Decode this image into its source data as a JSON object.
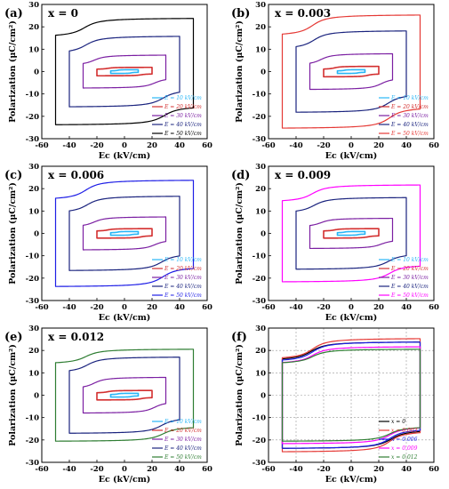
{
  "chart_data": [
    {
      "type": "line",
      "panel_label": "(a)",
      "title": "x = 0",
      "xlabel": "Ec (kV/cm)",
      "ylabel": "Polarization (μC/cm²)",
      "xlim": [
        -60,
        60
      ],
      "ylim": [
        -30,
        30
      ],
      "xticks": [
        -60,
        -40,
        -20,
        0,
        20,
        40,
        60
      ],
      "yticks": [
        -30,
        -20,
        -10,
        0,
        10,
        20,
        30
      ],
      "grid": false,
      "legend": "bottom-right",
      "series": [
        {
          "name": "E = 10 kV/cm",
          "color": "#29b6f6",
          "emax": 10,
          "pmax": 0.8,
          "pr": 0.5,
          "ec": 5,
          "pbr": 0.3
        },
        {
          "name": "E = 20 kV/cm",
          "color": "#d32f2f",
          "emax": 20,
          "pmax": 1.8,
          "pr": 1.2,
          "ec": 12,
          "pbr": 1.0
        },
        {
          "name": "E = 30 kV/cm",
          "color": "#7b1fa2",
          "emax": 30,
          "pmax": 6.5,
          "pr": 2.5,
          "ec": 22,
          "pbr": 2.8
        },
        {
          "name": "E = 40 kV/cm",
          "color": "#1a237e",
          "emax": 40,
          "pmax": 14.5,
          "pr": 8.5,
          "ec": 28,
          "pbr": 8.0
        },
        {
          "name": "E = 50 kV/cm",
          "color": "#000000",
          "emax": 50,
          "pmax": 23,
          "pr": 16.5,
          "ec": 29,
          "pbr": 15.5
        }
      ]
    },
    {
      "type": "line",
      "panel_label": "(b)",
      "title": "x = 0.003",
      "xlabel": "Ec (kV/cm)",
      "ylabel": "Polarization (μC/cm²)",
      "xlim": [
        -60,
        60
      ],
      "ylim": [
        -30,
        30
      ],
      "xticks": [
        -60,
        -40,
        -20,
        0,
        20,
        40,
        60
      ],
      "yticks": [
        -30,
        -20,
        -10,
        0,
        10,
        20,
        30
      ],
      "grid": false,
      "legend": "bottom-right",
      "series": [
        {
          "name": "E = 10 kV/cm",
          "color": "#29b6f6",
          "emax": 10,
          "pmax": 0.8,
          "pr": 0.5,
          "ec": 5,
          "pbr": 0.3
        },
        {
          "name": "E = 20 kV/cm",
          "color": "#d32f2f",
          "emax": 20,
          "pmax": 2.2,
          "pr": 1.2,
          "ec": 12,
          "pbr": 1.0
        },
        {
          "name": "E = 30 kV/cm",
          "color": "#7b1fa2",
          "emax": 30,
          "pmax": 7,
          "pr": 3,
          "ec": 22,
          "pbr": 2.8
        },
        {
          "name": "E = 40 kV/cm",
          "color": "#1a237e",
          "emax": 40,
          "pmax": 17,
          "pr": 11,
          "ec": 27,
          "pbr": 10
        },
        {
          "name": "E = 50 kV/cm",
          "color": "#e53935",
          "emax": 50,
          "pmax": 24.5,
          "pr": 17,
          "ec": 28,
          "pbr": 16
        }
      ]
    },
    {
      "type": "line",
      "panel_label": "(c)",
      "title": "x = 0.006",
      "xlabel": "Ec (kV/cm)",
      "ylabel": "Polarization (μC/cm²)",
      "xlim": [
        -60,
        60
      ],
      "ylim": [
        -30,
        30
      ],
      "xticks": [
        -60,
        -40,
        -20,
        0,
        20,
        40,
        60
      ],
      "yticks": [
        -30,
        -20,
        -10,
        0,
        10,
        20,
        30
      ],
      "grid": false,
      "legend": "bottom-right",
      "series": [
        {
          "name": "E = 10 kV/cm",
          "color": "#29b6f6",
          "emax": 10,
          "pmax": 0.8,
          "pr": 0.5,
          "ec": 5,
          "pbr": 0.3
        },
        {
          "name": "E = 20 kV/cm",
          "color": "#d32f2f",
          "emax": 20,
          "pmax": 2.0,
          "pr": 1.2,
          "ec": 12,
          "pbr": 1.0
        },
        {
          "name": "E = 30 kV/cm",
          "color": "#7b1fa2",
          "emax": 30,
          "pmax": 6.5,
          "pr": 2.8,
          "ec": 22,
          "pbr": 2.8
        },
        {
          "name": "E = 40 kV/cm",
          "color": "#1a237e",
          "emax": 40,
          "pmax": 15.5,
          "pr": 10,
          "ec": 27,
          "pbr": 9
        },
        {
          "name": "E = 50 kV/cm",
          "color": "#1e1ee6",
          "emax": 50,
          "pmax": 23,
          "pr": 16,
          "ec": 28,
          "pbr": 15
        }
      ]
    },
    {
      "type": "line",
      "panel_label": "(d)",
      "title": "x = 0.009",
      "xlabel": "Ec (kV/cm)",
      "ylabel": "Polarization (μC/cm²)",
      "xlim": [
        -60,
        60
      ],
      "ylim": [
        -30,
        30
      ],
      "xticks": [
        -60,
        -40,
        -20,
        0,
        20,
        40,
        60
      ],
      "yticks": [
        -30,
        -20,
        -10,
        0,
        10,
        20,
        30
      ],
      "grid": false,
      "legend": "bottom-right",
      "series": [
        {
          "name": "E = 10 kV/cm",
          "color": "#29b6f6",
          "emax": 10,
          "pmax": 0.8,
          "pr": 0.5,
          "ec": 5,
          "pbr": 0.3
        },
        {
          "name": "E = 20 kV/cm",
          "color": "#d32f2f",
          "emax": 20,
          "pmax": 2.0,
          "pr": 1.2,
          "ec": 12,
          "pbr": 1.0
        },
        {
          "name": "E = 30 kV/cm",
          "color": "#7b1fa2",
          "emax": 30,
          "pmax": 6,
          "pr": 2.8,
          "ec": 22,
          "pbr": 2.8
        },
        {
          "name": "E = 40 kV/cm",
          "color": "#1a237e",
          "emax": 40,
          "pmax": 15,
          "pr": 9.5,
          "ec": 27,
          "pbr": 9
        },
        {
          "name": "E = 50 kV/cm",
          "color": "#ff00ff",
          "emax": 50,
          "pmax": 21,
          "pr": 15,
          "ec": 28,
          "pbr": 14
        }
      ]
    },
    {
      "type": "line",
      "panel_label": "(e)",
      "title": "x = 0.012",
      "xlabel": "Ec (kV/cm)",
      "ylabel": "Polarization (μC/cm²)",
      "xlim": [
        -60,
        60
      ],
      "ylim": [
        -30,
        30
      ],
      "xticks": [
        -60,
        -40,
        -20,
        0,
        20,
        40,
        60
      ],
      "yticks": [
        -30,
        -20,
        -10,
        0,
        10,
        20,
        30
      ],
      "grid": false,
      "legend": "bottom-right",
      "series": [
        {
          "name": "E = 10 kV/cm",
          "color": "#29b6f6",
          "emax": 10,
          "pmax": 0.8,
          "pr": 0.5,
          "ec": 5,
          "pbr": 0.3
        },
        {
          "name": "E = 20 kV/cm",
          "color": "#d32f2f",
          "emax": 20,
          "pmax": 2.0,
          "pr": 1.2,
          "ec": 12,
          "pbr": 1.0
        },
        {
          "name": "E = 30 kV/cm",
          "color": "#7b1fa2",
          "emax": 30,
          "pmax": 7,
          "pr": 3,
          "ec": 22,
          "pbr": 2.8
        },
        {
          "name": "E = 40 kV/cm",
          "color": "#1a237e",
          "emax": 40,
          "pmax": 16,
          "pr": 10.5,
          "ec": 27,
          "pbr": 10
        },
        {
          "name": "E = 50 kV/cm",
          "color": "#2e7d32",
          "emax": 50,
          "pmax": 20,
          "pr": 15,
          "ec": 28,
          "pbr": 14
        }
      ]
    },
    {
      "type": "line",
      "panel_label": "(f)",
      "title": "",
      "xlabel": "Ec (kV/cm)",
      "ylabel": "Polarization (μC/cm²)",
      "xlim": [
        -60,
        60
      ],
      "ylim": [
        -30,
        30
      ],
      "xticks": [
        -60,
        -40,
        -20,
        0,
        20,
        40,
        60
      ],
      "yticks": [
        -30,
        -20,
        -10,
        0,
        10,
        20,
        30
      ],
      "grid": true,
      "legend": "bottom-right",
      "series": [
        {
          "name": "x = 0",
          "color": "#000000",
          "emax": 50,
          "pmax": 23,
          "pr": 16.5,
          "ec": 29,
          "pbr": 15.5
        },
        {
          "name": "x = 0.003",
          "color": "#e53935",
          "emax": 50,
          "pmax": 24.5,
          "pr": 17,
          "ec": 28,
          "pbr": 16
        },
        {
          "name": "x = 0.006",
          "color": "#1e1ee6",
          "emax": 50,
          "pmax": 23,
          "pr": 16,
          "ec": 28,
          "pbr": 15
        },
        {
          "name": "x = 0.009",
          "color": "#ff00ff",
          "emax": 50,
          "pmax": 21,
          "pr": 15,
          "ec": 28,
          "pbr": 14
        },
        {
          "name": "x = 0.012",
          "color": "#2e7d32",
          "emax": 50,
          "pmax": 20,
          "pr": 15,
          "ec": 28,
          "pbr": 14
        }
      ]
    }
  ]
}
